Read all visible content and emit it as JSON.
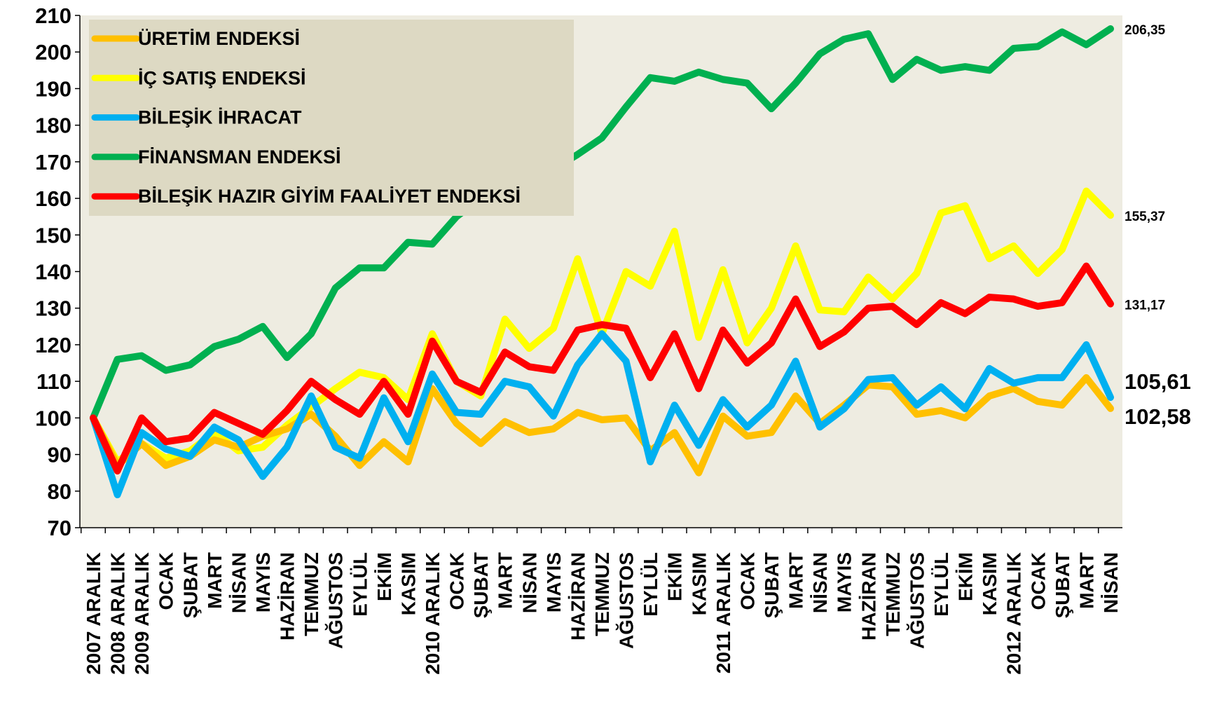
{
  "chart_data": {
    "type": "line",
    "categories": [
      "2007 ARALIK",
      "2008 ARALIK",
      "2009 ARALIK",
      "OCAK",
      "ŞUBAT",
      "MART",
      "NİSAN",
      "MAYIS",
      "HAZİRAN",
      "TEMMUZ",
      "AĞUSTOS",
      "EYLÜL",
      "EKİM",
      "KASIM",
      "2010 ARALIK",
      "OCAK",
      "ŞUBAT",
      "MART",
      "NİSAN",
      "MAYIS",
      "HAZİRAN",
      "TEMMUZ",
      "AĞUSTOS",
      "EYLÜL",
      "EKİM",
      "KASIM",
      "2011 ARALIK",
      "OCAK",
      "ŞUBAT",
      "MART",
      "NİSAN",
      "MAYIS",
      "HAZİRAN",
      "TEMMUZ",
      "AĞUSTOS",
      "EYLÜL",
      "EKİM",
      "KASIM",
      "2012 ARALIK",
      "OCAK",
      "ŞUBAT",
      "MART",
      "NİSAN"
    ],
    "series": [
      {
        "name": "ÜRETİM ENDEKSİ",
        "color": "#ffc000",
        "values": [
          100,
          87,
          93,
          87,
          89.5,
          94,
          92,
          95,
          97,
          101,
          95,
          87,
          93.5,
          88,
          108,
          98.5,
          93,
          99,
          96,
          97,
          101.5,
          99.5,
          100,
          91,
          96,
          85,
          100.5,
          95,
          96,
          106,
          98.5,
          103.5,
          109,
          108.5,
          101,
          102,
          100,
          106,
          108,
          104.5,
          103.5,
          111,
          102.58
        ],
        "value_labels": [
          null,
          null,
          null,
          null,
          null,
          null,
          null,
          null,
          null,
          null,
          null,
          null,
          null,
          null,
          null,
          null,
          null,
          null,
          null,
          null,
          null,
          null,
          null,
          null,
          null,
          null,
          null,
          null,
          null,
          null,
          null,
          null,
          null,
          null,
          null,
          null,
          null,
          null,
          null,
          null,
          null,
          null,
          "102,58"
        ]
      },
      {
        "name": "İÇ SATIŞ ENDEKSİ",
        "color": "#ffff00",
        "values": [
          100,
          88,
          93,
          89,
          91,
          96,
          91,
          92,
          98,
          103,
          108,
          112.5,
          111,
          105,
          123,
          110,
          106,
          127,
          119,
          124.5,
          143.5,
          123,
          140,
          136,
          151,
          122,
          140.5,
          120.5,
          130,
          147,
          129.5,
          129,
          138.5,
          132.5,
          139.5,
          156,
          158,
          143.5,
          147,
          139.5,
          146,
          162,
          155.37
        ],
        "value_labels": [
          null,
          null,
          null,
          null,
          null,
          null,
          null,
          null,
          null,
          null,
          null,
          null,
          null,
          null,
          null,
          null,
          null,
          null,
          null,
          null,
          null,
          null,
          null,
          null,
          null,
          null,
          null,
          null,
          null,
          null,
          null,
          null,
          null,
          null,
          null,
          null,
          null,
          null,
          null,
          null,
          null,
          null,
          "155,37"
        ]
      },
      {
        "name": "BİLEŞİK İHRACAT",
        "color": "#00b0f0",
        "values": [
          100,
          79,
          96,
          91.5,
          89.5,
          97.5,
          94,
          84,
          92,
          106,
          92,
          89,
          105.5,
          93.5,
          112,
          101.5,
          101,
          110,
          108.5,
          100.5,
          114.5,
          123,
          115.5,
          88,
          103.5,
          92.5,
          105,
          97.5,
          103.5,
          115.5,
          97.5,
          102.5,
          110.5,
          111,
          103.5,
          108.5,
          102.5,
          113.5,
          109.5,
          111,
          111,
          120,
          105.61
        ],
        "value_labels": [
          null,
          null,
          null,
          null,
          null,
          null,
          null,
          null,
          null,
          null,
          null,
          null,
          null,
          null,
          null,
          null,
          null,
          null,
          null,
          null,
          null,
          null,
          null,
          null,
          null,
          null,
          null,
          null,
          null,
          null,
          null,
          null,
          null,
          null,
          null,
          null,
          null,
          null,
          null,
          null,
          null,
          null,
          "105,61"
        ]
      },
      {
        "name": "FİNANSMAN ENDEKSİ",
        "color": "#00b050",
        "values": [
          100,
          116,
          117,
          113,
          114.5,
          119.5,
          121.5,
          125,
          116.5,
          123,
          135.5,
          141,
          141,
          148,
          147.5,
          155,
          160,
          163,
          166,
          168,
          172,
          176.5,
          185,
          193,
          192,
          194.5,
          192.5,
          191.5,
          184.5,
          191.5,
          199.5,
          203.5,
          205,
          192.5,
          198,
          195,
          196,
          195,
          201,
          201.5,
          205.5,
          202,
          206.35
        ],
        "value_labels": [
          null,
          null,
          null,
          null,
          null,
          null,
          null,
          null,
          null,
          null,
          null,
          null,
          null,
          null,
          null,
          null,
          null,
          null,
          null,
          null,
          null,
          null,
          null,
          null,
          null,
          null,
          null,
          null,
          null,
          null,
          null,
          null,
          null,
          null,
          null,
          null,
          null,
          null,
          null,
          null,
          null,
          null,
          "206,35"
        ]
      },
      {
        "name": "BİLEŞİK HAZIR GİYİM FAALİYET ENDEKSİ",
        "color": "#ff0000",
        "values": [
          100,
          85.5,
          100,
          93.5,
          94.5,
          101.5,
          98.5,
          95.5,
          102,
          110,
          105,
          101,
          110,
          101,
          121,
          110,
          107,
          118,
          114,
          113,
          124,
          125.5,
          124.5,
          111,
          123,
          108,
          124,
          115,
          120.5,
          132.5,
          119.5,
          123.5,
          130,
          130.5,
          125.5,
          131.5,
          128.5,
          133,
          132.5,
          130.5,
          131.5,
          141.5,
          131.17
        ],
        "value_labels": [
          null,
          null,
          null,
          null,
          null,
          null,
          null,
          null,
          null,
          null,
          null,
          null,
          null,
          null,
          null,
          null,
          null,
          null,
          null,
          null,
          null,
          null,
          null,
          null,
          null,
          null,
          null,
          null,
          null,
          null,
          null,
          null,
          null,
          null,
          null,
          null,
          null,
          null,
          null,
          null,
          null,
          null,
          "131,17"
        ]
      }
    ],
    "ylim": [
      70,
      210
    ],
    "yticks": [
      70,
      80,
      90,
      100,
      110,
      120,
      130,
      140,
      150,
      160,
      170,
      180,
      190,
      200,
      210
    ],
    "legend": "upper left"
  }
}
